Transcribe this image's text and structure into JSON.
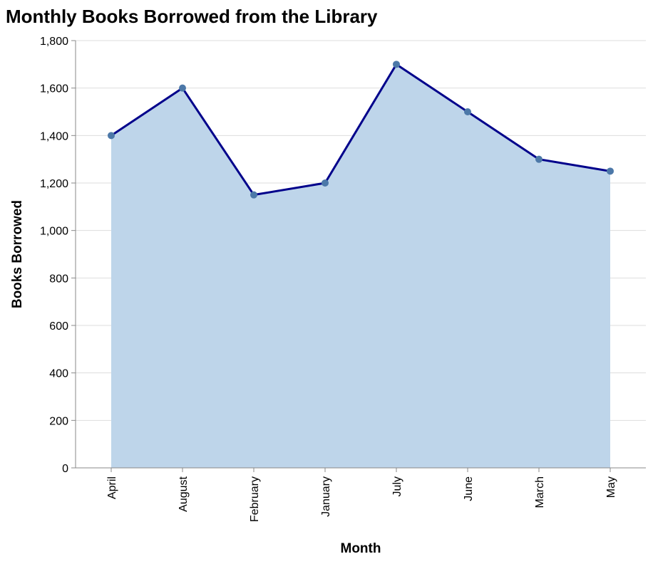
{
  "chart_data": {
    "type": "area",
    "title": "Monthly Books Borrowed from the Library",
    "xlabel": "Month",
    "ylabel": "Books Borrowed",
    "categories": [
      "April",
      "August",
      "February",
      "January",
      "July",
      "June",
      "March",
      "May"
    ],
    "values": [
      1400,
      1600,
      1150,
      1200,
      1700,
      1500,
      1300,
      1250
    ],
    "ylim": [
      0,
      1800
    ],
    "yticks": [
      "0",
      "200",
      "400",
      "600",
      "800",
      "1,000",
      "1,200",
      "1,400",
      "1,600",
      "1,800"
    ],
    "grid": true,
    "colors": {
      "area": "#bed5ea",
      "line": "#00008b",
      "point": "#4c78a8",
      "grid": "#dddddd",
      "axis": "#888888"
    }
  }
}
